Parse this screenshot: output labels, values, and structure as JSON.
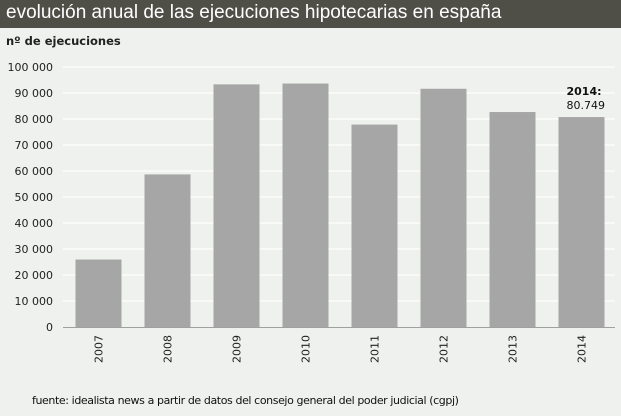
{
  "chart_data": {
    "type": "bar",
    "title": "evolución anual de las ejecuciones hipotecarias en españa",
    "ylabel": "nº de ejecuciones",
    "xlabel": "",
    "categories": [
      "2007",
      "2008",
      "2009",
      "2010",
      "2011",
      "2012",
      "2013",
      "2014"
    ],
    "values": [
      25943,
      58686,
      93319,
      93636,
      77854,
      91622,
      82680,
      80749
    ],
    "ylim": [
      0,
      100000
    ],
    "yticks": [
      0,
      10000,
      20000,
      30000,
      40000,
      50000,
      60000,
      70000,
      80000,
      90000,
      100000
    ],
    "ytick_labels": [
      "0",
      "10 000",
      "20 000",
      "30 000",
      "40 000",
      "50 000",
      "60 000",
      "70 000",
      "80 000",
      "90 000",
      "100 000"
    ],
    "grid": true,
    "bar_color": "#a6a6a6",
    "annotation": {
      "label": "2014:",
      "value": "80.749"
    },
    "source": "fuente: idealista news a partir de datos del consejo general del poder judicial (cgpj)"
  },
  "colors": {
    "background": "#eff1ee",
    "title_bar": "#4f4e47",
    "grid": "#ffffff",
    "axis": "#a0a0a0"
  }
}
